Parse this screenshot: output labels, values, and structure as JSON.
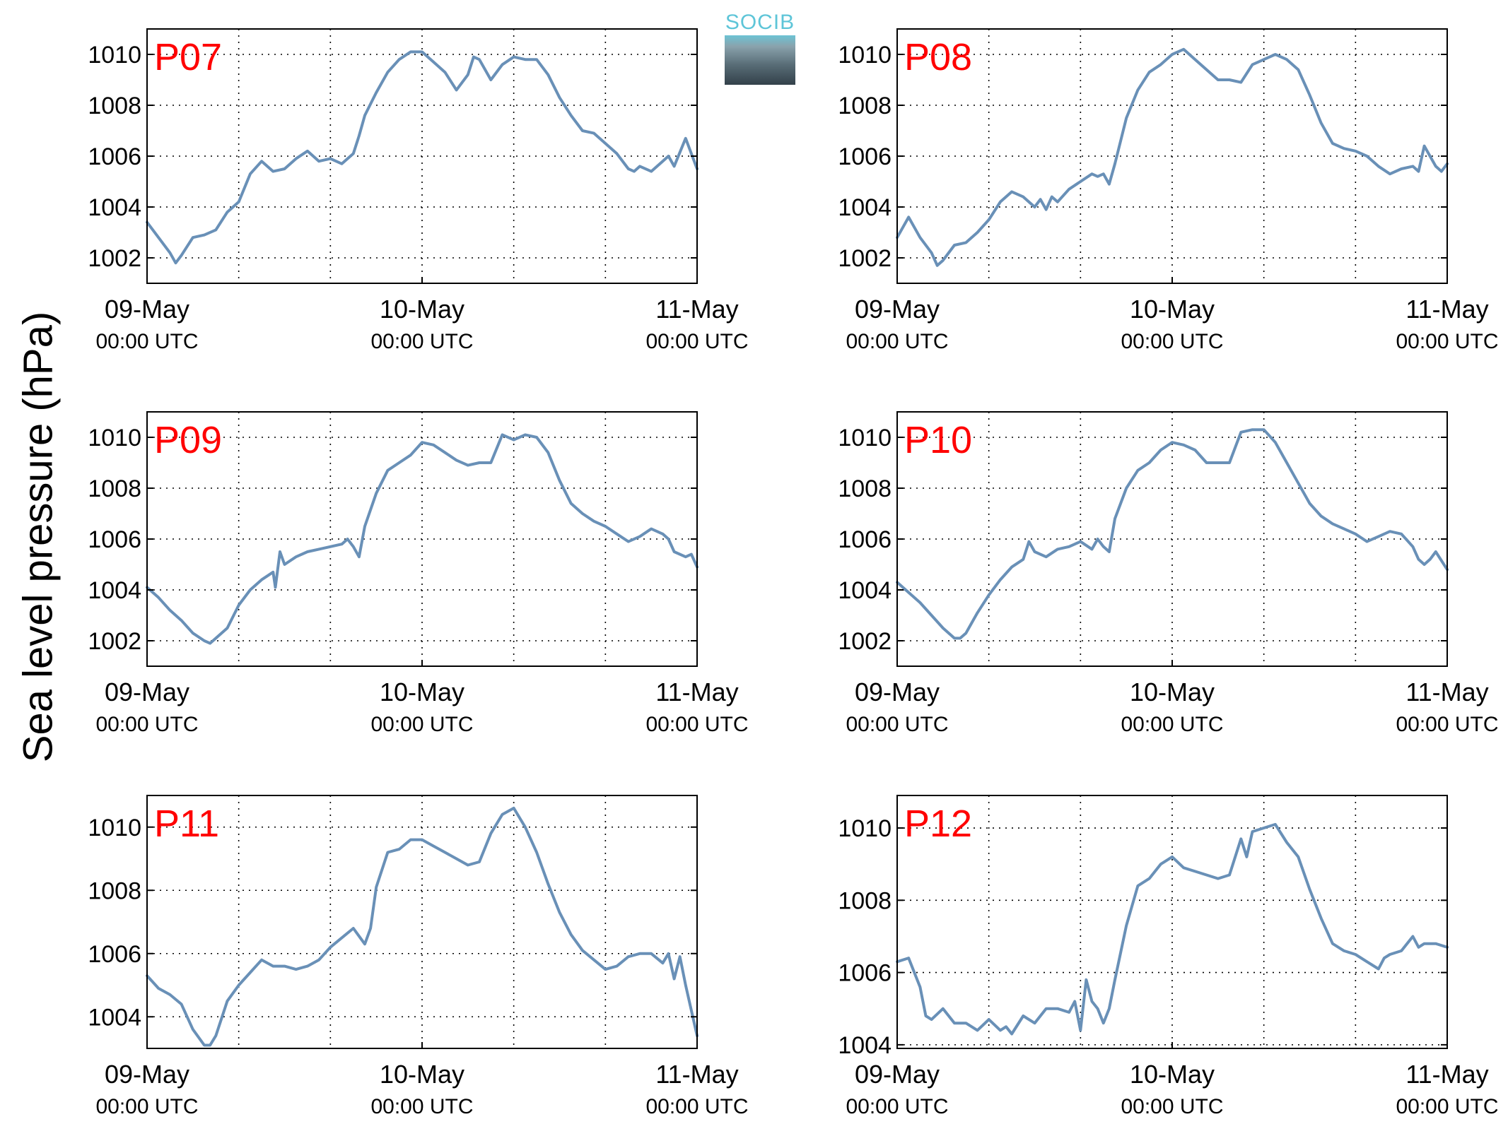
{
  "figure": {
    "ylabel": "Sea level pressure (hPa)",
    "logo_text": "SOCIB",
    "colors": {
      "line": "#6990b7",
      "station_label": "#ff0000",
      "grid": "#000000",
      "axes": "#000000"
    }
  },
  "chart_data": [
    {
      "type": "line",
      "station": "P07",
      "xlabel": "",
      "ylabel": "Sea level pressure (hPa)",
      "x_unit": "hours since 09-May 00:00 UTC",
      "xlim": [
        0,
        48
      ],
      "ylim": [
        1001,
        1011
      ],
      "yticks": [
        1002,
        1004,
        1006,
        1008,
        1010
      ],
      "xticks": [
        {
          "day": "09-May",
          "time": "00:00 UTC"
        },
        {
          "day": "10-May",
          "time": "00:00 UTC"
        },
        {
          "day": "11-May",
          "time": "00:00 UTC"
        }
      ],
      "grid": true,
      "series": [
        {
          "x": [
            0,
            1,
            2,
            2.5,
            3,
            4,
            5,
            6,
            7,
            8,
            9,
            10,
            11,
            12,
            13,
            14,
            15,
            16,
            17,
            18,
            18.5,
            19,
            20,
            21,
            22,
            23,
            24,
            25,
            26,
            27,
            28,
            28.5,
            29,
            30,
            31,
            32,
            33,
            34,
            35,
            36,
            37,
            38,
            39,
            40,
            41,
            42,
            42.5,
            43,
            44,
            45,
            45.5,
            46,
            47,
            47.5,
            48
          ],
          "y": [
            1003.4,
            1002.8,
            1002.2,
            1001.8,
            1002.1,
            1002.8,
            1002.9,
            1003.1,
            1003.8,
            1004.2,
            1005.3,
            1005.8,
            1005.4,
            1005.5,
            1005.9,
            1006.2,
            1005.8,
            1005.9,
            1005.7,
            1006.1,
            1006.8,
            1007.6,
            1008.5,
            1009.3,
            1009.8,
            1010.1,
            1010.1,
            1009.7,
            1009.3,
            1008.6,
            1009.2,
            1009.9,
            1009.8,
            1009.0,
            1009.6,
            1009.9,
            1009.8,
            1009.8,
            1009.2,
            1008.3,
            1007.6,
            1007.0,
            1006.9,
            1006.5,
            1006.1,
            1005.5,
            1005.4,
            1005.6,
            1005.4,
            1005.8,
            1006.0,
            1005.6,
            1006.7,
            1006.1,
            1005.5
          ]
        }
      ]
    },
    {
      "type": "line",
      "station": "P08",
      "xlabel": "",
      "ylabel": "Sea level pressure (hPa)",
      "x_unit": "hours since 09-May 00:00 UTC",
      "xlim": [
        0,
        48
      ],
      "ylim": [
        1001,
        1011
      ],
      "yticks": [
        1002,
        1004,
        1006,
        1008,
        1010
      ],
      "xticks": [
        {
          "day": "09-May",
          "time": "00:00 UTC"
        },
        {
          "day": "10-May",
          "time": "00:00 UTC"
        },
        {
          "day": "11-May",
          "time": "00:00 UTC"
        }
      ],
      "grid": true,
      "series": [
        {
          "x": [
            0,
            1,
            2,
            3,
            3.5,
            4,
            5,
            6,
            7,
            8,
            9,
            10,
            11,
            12,
            12.5,
            13,
            13.5,
            14,
            15,
            16,
            17,
            17.5,
            18,
            18.5,
            19,
            20,
            21,
            22,
            23,
            24,
            25,
            26,
            27,
            28,
            29,
            30,
            31,
            32,
            33,
            34,
            35,
            36,
            37,
            38,
            39,
            40,
            41,
            42,
            43,
            44,
            45,
            45.5,
            46,
            47,
            47.5,
            48
          ],
          "y": [
            1002.8,
            1003.6,
            1002.8,
            1002.2,
            1001.7,
            1001.9,
            1002.5,
            1002.6,
            1003.0,
            1003.5,
            1004.2,
            1004.6,
            1004.4,
            1004.0,
            1004.3,
            1003.9,
            1004.4,
            1004.2,
            1004.7,
            1005.0,
            1005.3,
            1005.2,
            1005.3,
            1004.9,
            1005.7,
            1007.5,
            1008.6,
            1009.3,
            1009.6,
            1010.0,
            1010.2,
            1009.8,
            1009.4,
            1009.0,
            1009.0,
            1008.9,
            1009.6,
            1009.8,
            1010.0,
            1009.8,
            1009.4,
            1008.4,
            1007.3,
            1006.5,
            1006.3,
            1006.2,
            1006.0,
            1005.6,
            1005.3,
            1005.5,
            1005.6,
            1005.4,
            1006.4,
            1005.6,
            1005.4,
            1005.7
          ]
        }
      ]
    },
    {
      "type": "line",
      "station": "P09",
      "xlabel": "",
      "ylabel": "Sea level pressure (hPa)",
      "x_unit": "hours since 09-May 00:00 UTC",
      "xlim": [
        0,
        48
      ],
      "ylim": [
        1001,
        1011
      ],
      "yticks": [
        1002,
        1004,
        1006,
        1008,
        1010
      ],
      "xticks": [
        {
          "day": "09-May",
          "time": "00:00 UTC"
        },
        {
          "day": "10-May",
          "time": "00:00 UTC"
        },
        {
          "day": "11-May",
          "time": "00:00 UTC"
        }
      ],
      "grid": true,
      "series": [
        {
          "x": [
            0,
            1,
            2,
            3,
            4,
            5,
            5.5,
            6,
            7,
            8,
            9,
            10,
            11,
            11.2,
            11.6,
            12,
            13,
            14,
            15,
            16,
            17,
            17.5,
            18,
            18.5,
            19,
            20,
            21,
            22,
            23,
            24,
            25,
            26,
            27,
            28,
            29,
            30,
            31,
            32,
            33,
            34,
            35,
            36,
            37,
            38,
            39,
            40,
            41,
            42,
            43,
            44,
            45,
            45.5,
            46,
            47,
            47.5,
            48
          ],
          "y": [
            1004.1,
            1003.7,
            1003.2,
            1002.8,
            1002.3,
            1002.0,
            1001.9,
            1002.1,
            1002.5,
            1003.4,
            1004.0,
            1004.4,
            1004.7,
            1004.1,
            1005.5,
            1005.0,
            1005.3,
            1005.5,
            1005.6,
            1005.7,
            1005.8,
            1006.0,
            1005.7,
            1005.3,
            1006.5,
            1007.8,
            1008.7,
            1009.0,
            1009.3,
            1009.8,
            1009.7,
            1009.4,
            1009.1,
            1008.9,
            1009.0,
            1009.0,
            1010.1,
            1009.9,
            1010.1,
            1010.0,
            1009.4,
            1008.3,
            1007.4,
            1007.0,
            1006.7,
            1006.5,
            1006.2,
            1005.9,
            1006.1,
            1006.4,
            1006.2,
            1006.0,
            1005.5,
            1005.3,
            1005.4,
            1004.9
          ]
        }
      ]
    },
    {
      "type": "line",
      "station": "P10",
      "xlabel": "",
      "ylabel": "Sea level pressure (hPa)",
      "x_unit": "hours since 09-May 00:00 UTC",
      "xlim": [
        0,
        48
      ],
      "ylim": [
        1001,
        1011
      ],
      "yticks": [
        1002,
        1004,
        1006,
        1008,
        1010
      ],
      "xticks": [
        {
          "day": "09-May",
          "time": "00:00 UTC"
        },
        {
          "day": "10-May",
          "time": "00:00 UTC"
        },
        {
          "day": "11-May",
          "time": "00:00 UTC"
        }
      ],
      "grid": true,
      "series": [
        {
          "x": [
            0,
            1,
            2,
            3,
            4,
            5,
            5.5,
            6,
            7,
            8,
            9,
            10,
            11,
            11.5,
            12,
            13,
            14,
            15,
            16,
            17,
            17.5,
            18,
            18.5,
            19,
            20,
            21,
            22,
            23,
            24,
            25,
            26,
            27,
            28,
            29,
            30,
            31,
            32,
            33,
            34,
            35,
            36,
            37,
            38,
            39,
            40,
            41,
            42,
            43,
            44,
            45,
            45.5,
            46,
            46.5,
            47,
            48
          ],
          "y": [
            1004.3,
            1003.9,
            1003.5,
            1003.0,
            1002.5,
            1002.1,
            1002.1,
            1002.3,
            1003.1,
            1003.8,
            1004.4,
            1004.9,
            1005.2,
            1005.9,
            1005.5,
            1005.3,
            1005.6,
            1005.7,
            1005.9,
            1005.6,
            1006.0,
            1005.7,
            1005.5,
            1006.8,
            1008.0,
            1008.7,
            1009.0,
            1009.5,
            1009.8,
            1009.7,
            1009.5,
            1009.0,
            1009.0,
            1009.0,
            1010.2,
            1010.3,
            1010.3,
            1009.8,
            1009.0,
            1008.2,
            1007.4,
            1006.9,
            1006.6,
            1006.4,
            1006.2,
            1005.9,
            1006.1,
            1006.3,
            1006.2,
            1005.7,
            1005.2,
            1005.0,
            1005.2,
            1005.5,
            1004.8
          ]
        }
      ]
    },
    {
      "type": "line",
      "station": "P11",
      "xlabel": "",
      "ylabel": "Sea level pressure (hPa)",
      "x_unit": "hours since 09-May 00:00 UTC",
      "xlim": [
        0,
        48
      ],
      "ylim": [
        1003,
        1011
      ],
      "yticks": [
        1004,
        1006,
        1008,
        1010
      ],
      "xticks": [
        {
          "day": "09-May",
          "time": "00:00 UTC"
        },
        {
          "day": "10-May",
          "time": "00:00 UTC"
        },
        {
          "day": "11-May",
          "time": "00:00 UTC"
        }
      ],
      "grid": true,
      "series": [
        {
          "x": [
            0,
            1,
            2,
            3,
            4,
            5,
            5.5,
            6,
            7,
            8,
            9,
            10,
            11,
            12,
            13,
            14,
            15,
            16,
            17,
            18,
            19,
            19.5,
            20,
            21,
            22,
            23,
            24,
            25,
            26,
            27,
            28,
            29,
            30,
            31,
            32,
            33,
            34,
            35,
            36,
            37,
            38,
            39,
            40,
            41,
            42,
            43,
            44,
            45,
            45.5,
            46,
            46.5,
            47,
            47.5,
            48
          ],
          "y": [
            1005.3,
            1004.9,
            1004.7,
            1004.4,
            1003.6,
            1003.1,
            1003.1,
            1003.4,
            1004.5,
            1005.0,
            1005.4,
            1005.8,
            1005.6,
            1005.6,
            1005.5,
            1005.6,
            1005.8,
            1006.2,
            1006.5,
            1006.8,
            1006.3,
            1006.8,
            1008.1,
            1009.2,
            1009.3,
            1009.6,
            1009.6,
            1009.4,
            1009.2,
            1009.0,
            1008.8,
            1008.9,
            1009.8,
            1010.4,
            1010.6,
            1010.0,
            1009.2,
            1008.2,
            1007.3,
            1006.6,
            1006.1,
            1005.8,
            1005.5,
            1005.6,
            1005.9,
            1006.0,
            1006.0,
            1005.7,
            1006.0,
            1005.2,
            1005.9,
            1005.0,
            1004.2,
            1003.4
          ]
        }
      ]
    },
    {
      "type": "line",
      "station": "P12",
      "xlabel": "",
      "ylabel": "Sea level pressure (hPa)",
      "x_unit": "hours since 09-May 00:00 UTC",
      "xlim": [
        0,
        48
      ],
      "ylim": [
        1003.9,
        1010.9
      ],
      "yticks": [
        1004,
        1006,
        1008,
        1010
      ],
      "xticks": [
        {
          "day": "09-May",
          "time": "00:00 UTC"
        },
        {
          "day": "10-May",
          "time": "00:00 UTC"
        },
        {
          "day": "11-May",
          "time": "00:00 UTC"
        }
      ],
      "grid": true,
      "series": [
        {
          "x": [
            0,
            1,
            2,
            2.5,
            3,
            4,
            5,
            6,
            7,
            8,
            9,
            9.5,
            10,
            11,
            12,
            13,
            14,
            15,
            15.5,
            16,
            16.5,
            17,
            17.5,
            18,
            18.5,
            19,
            20,
            21,
            22,
            23,
            24,
            25,
            26,
            27,
            28,
            29,
            30,
            30.5,
            31,
            32,
            33,
            34,
            35,
            36,
            37,
            38,
            39,
            40,
            41,
            42,
            42.5,
            43,
            44,
            45,
            45.5,
            46,
            47,
            48
          ],
          "y": [
            1006.3,
            1006.4,
            1005.6,
            1004.8,
            1004.7,
            1005.0,
            1004.6,
            1004.6,
            1004.4,
            1004.7,
            1004.4,
            1004.5,
            1004.3,
            1004.8,
            1004.6,
            1005.0,
            1005.0,
            1004.9,
            1005.2,
            1004.4,
            1005.8,
            1005.2,
            1005.0,
            1004.6,
            1005.0,
            1005.8,
            1007.3,
            1008.4,
            1008.6,
            1009.0,
            1009.2,
            1008.9,
            1008.8,
            1008.7,
            1008.6,
            1008.7,
            1009.7,
            1009.2,
            1009.9,
            1010.0,
            1010.1,
            1009.6,
            1009.2,
            1008.3,
            1007.5,
            1006.8,
            1006.6,
            1006.5,
            1006.3,
            1006.1,
            1006.4,
            1006.5,
            1006.6,
            1007.0,
            1006.7,
            1006.8,
            1006.8,
            1006.7
          ]
        }
      ]
    }
  ]
}
